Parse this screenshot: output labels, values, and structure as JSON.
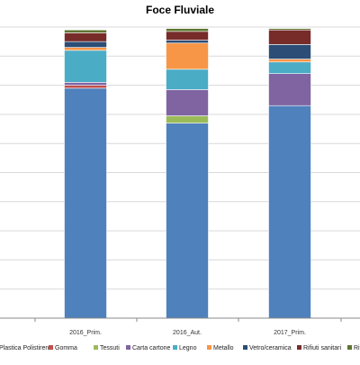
{
  "chart_data": {
    "type": "bar",
    "stacked": true,
    "title": "Foce Fluviale",
    "categories": [
      "",
      "2016_Prim.",
      "2016_Aut.",
      "2017_Prim."
    ],
    "ylim": [
      0,
      100
    ],
    "grid": true,
    "legend_position": "bottom",
    "series": [
      {
        "name": "Plastica Polistirene",
        "color": "#4f81bd",
        "values": [
          0,
          79,
          67,
          73
        ]
      },
      {
        "name": "Gomma",
        "color": "#c0504d",
        "values": [
          0,
          1,
          0,
          0
        ]
      },
      {
        "name": "Tessuti",
        "color": "#9bbb59",
        "values": [
          0,
          0,
          2.5,
          0
        ]
      },
      {
        "name": "Carta cartone",
        "color": "#8064a2",
        "values": [
          0,
          1,
          9,
          11
        ]
      },
      {
        "name": "Legno",
        "color": "#4bacc6",
        "values": [
          0,
          11,
          7,
          4
        ]
      },
      {
        "name": "Metallo",
        "color": "#f79646",
        "values": [
          0,
          1,
          9,
          1
        ]
      },
      {
        "name": "Vetro/ceramica",
        "color": "#2c4d75",
        "values": [
          0,
          2,
          1,
          5
        ]
      },
      {
        "name": "Rifiuti sanitari",
        "color": "#772c2a",
        "values": [
          0,
          3,
          3,
          5
        ]
      },
      {
        "name": "Rifiuti medici",
        "color": "#5f7530",
        "values": [
          0,
          1,
          1,
          0.5
        ]
      }
    ]
  }
}
